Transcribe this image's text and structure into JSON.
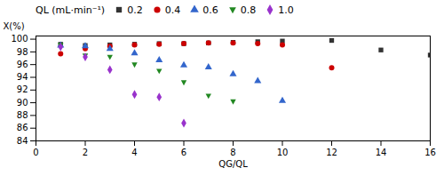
{
  "chart_data": {
    "type": "scatter",
    "xlabel": "QG/QL",
    "ylabel": "X(%)",
    "xlim": [
      0,
      16
    ],
    "ylim": [
      84,
      100.5
    ],
    "xticks": [
      0,
      2,
      4,
      6,
      8,
      10,
      12,
      14,
      16
    ],
    "yticks": [
      84,
      86,
      88,
      90,
      92,
      94,
      96,
      98,
      100
    ],
    "legend_title": "QL (mL·min⁻¹)",
    "legend": "top",
    "series": [
      {
        "name": "0.2",
        "color": "#333333",
        "marker": "square",
        "x": [
          1,
          2,
          3,
          4,
          5,
          6,
          7,
          8,
          9,
          10,
          12,
          14,
          16
        ],
        "values": [
          99.2,
          99.0,
          99.1,
          99.2,
          99.3,
          99.3,
          99.4,
          99.5,
          99.6,
          99.7,
          99.8,
          98.3,
          97.5
        ]
      },
      {
        "name": "0.4",
        "color": "#cc0000",
        "marker": "circle",
        "x": [
          1,
          2,
          3,
          4,
          5,
          6,
          7,
          8,
          9,
          10,
          12
        ],
        "values": [
          97.7,
          98.5,
          98.9,
          99.1,
          99.2,
          99.3,
          99.4,
          99.4,
          99.3,
          99.1,
          95.5
        ]
      },
      {
        "name": "0.6",
        "color": "#3366cc",
        "marker": "triangle-up",
        "x": [
          1,
          2,
          3,
          4,
          5,
          6,
          7,
          8,
          9,
          10
        ],
        "values": [
          99.0,
          98.9,
          98.5,
          97.8,
          96.7,
          95.9,
          95.6,
          94.5,
          93.4,
          90.3
        ]
      },
      {
        "name": "0.8",
        "color": "#228822",
        "marker": "triangle-down",
        "x": [
          1,
          2,
          3,
          4,
          5,
          6,
          7,
          8
        ],
        "values": [
          99.1,
          97.4,
          97.2,
          96.0,
          95.0,
          93.2,
          91.1,
          90.2
        ]
      },
      {
        "name": "1.0",
        "color": "#9933cc",
        "marker": "diamond",
        "x": [
          1,
          2,
          3,
          4,
          5,
          6
        ],
        "values": [
          98.8,
          97.2,
          95.2,
          91.3,
          90.9,
          86.8
        ]
      }
    ]
  }
}
